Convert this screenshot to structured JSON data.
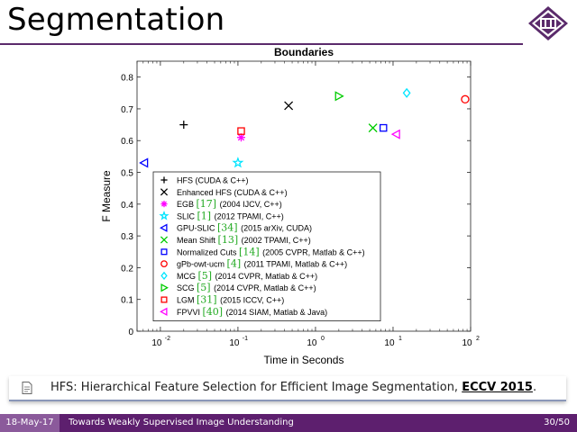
{
  "slide": {
    "title": "Segmentation"
  },
  "colors": {
    "accent": "#5a2a6b",
    "footer": "#5d1f6e",
    "footer_date_bg": "#8b5a9b"
  },
  "chart_data": {
    "type": "scatter",
    "title": "Boundaries",
    "xlabel": "Time in Seconds",
    "ylabel": "F Measure",
    "xscale": "log",
    "xlim": [
      0.005,
      100
    ],
    "ylim": [
      0,
      0.85
    ],
    "x_ticks": [
      "10",
      "10",
      "10",
      "10",
      "10"
    ],
    "x_tick_exps": [
      "-2",
      "-1",
      "0",
      "1",
      "2"
    ],
    "y_ticks": [
      "0",
      "0.1",
      "0.2",
      "0.3",
      "0.4",
      "0.5",
      "0.6",
      "0.7",
      "0.8"
    ],
    "legend_position": "bottom-left",
    "series": [
      {
        "name": "HFS",
        "ref": "",
        "detail": "(CUDA & C++)",
        "marker": "plus",
        "color": "#000000",
        "x": 0.02,
        "y": 0.65
      },
      {
        "name": "Enhanced HFS",
        "ref": "",
        "detail": "(CUDA & C++)",
        "marker": "x",
        "color": "#000000",
        "x": 0.45,
        "y": 0.71
      },
      {
        "name": "EGB",
        "ref": "[17]",
        "detail": "(2004 IJCV, C++)",
        "marker": "asterisk",
        "color": "#ff00ff",
        "x": 0.11,
        "y": 0.61
      },
      {
        "name": "SLIC",
        "ref": "[1]",
        "detail": "(2012 TPAMI, C++)",
        "marker": "star",
        "color": "#00e5ff",
        "x": 0.1,
        "y": 0.53
      },
      {
        "name": "GPU-SLIC",
        "ref": "[34]",
        "detail": "(2015 arXiv, CUDA)",
        "marker": "triangle-left",
        "color": "#0000ff",
        "x": 0.0062,
        "y": 0.53
      },
      {
        "name": "Mean Shift",
        "ref": "[13]",
        "detail": "(2002 TPAMI, C++)",
        "marker": "x",
        "color": "#00cc00",
        "x": 5.5,
        "y": 0.64
      },
      {
        "name": "Normalized Cuts",
        "ref": "[14]",
        "detail": "(2005 CVPR, Matlab & C++)",
        "marker": "square",
        "color": "#0000ff",
        "x": 7.5,
        "y": 0.64
      },
      {
        "name": "gPb-owt-ucm",
        "ref": "[4]",
        "detail": "(2011 TPAMI, Matlab & C++)",
        "marker": "circle",
        "color": "#ff0000",
        "x": 85,
        "y": 0.73
      },
      {
        "name": "MCG",
        "ref": "[5]",
        "detail": "(2014 CVPR, Matlab & C++)",
        "marker": "diamond",
        "color": "#00e5ff",
        "x": 15,
        "y": 0.75
      },
      {
        "name": "SCG",
        "ref": "[5]",
        "detail": "(2014 CVPR, Matlab & C++)",
        "marker": "triangle-right",
        "color": "#00cc00",
        "x": 2.0,
        "y": 0.74
      },
      {
        "name": "LGM",
        "ref": "[31]",
        "detail": "(2015 ICCV, C++)",
        "marker": "square",
        "color": "#ff0000",
        "x": 0.11,
        "y": 0.63
      },
      {
        "name": "FPVVI",
        "ref": "[40]",
        "detail": "(2014 SIAM, Matlab & Java)",
        "marker": "triangle-left",
        "color": "#ff00ff",
        "x": 11,
        "y": 0.62
      }
    ]
  },
  "note": {
    "icon": "document-icon",
    "text_prefix": "HFS: Hierarchical Feature Selection for Efficient Image Segmentation, ",
    "venue": "ECCV 2015",
    "suffix": "."
  },
  "footer": {
    "date": "18-May-17",
    "title": "Towards Weakly Supervised Image Understanding",
    "page": "30/50"
  }
}
